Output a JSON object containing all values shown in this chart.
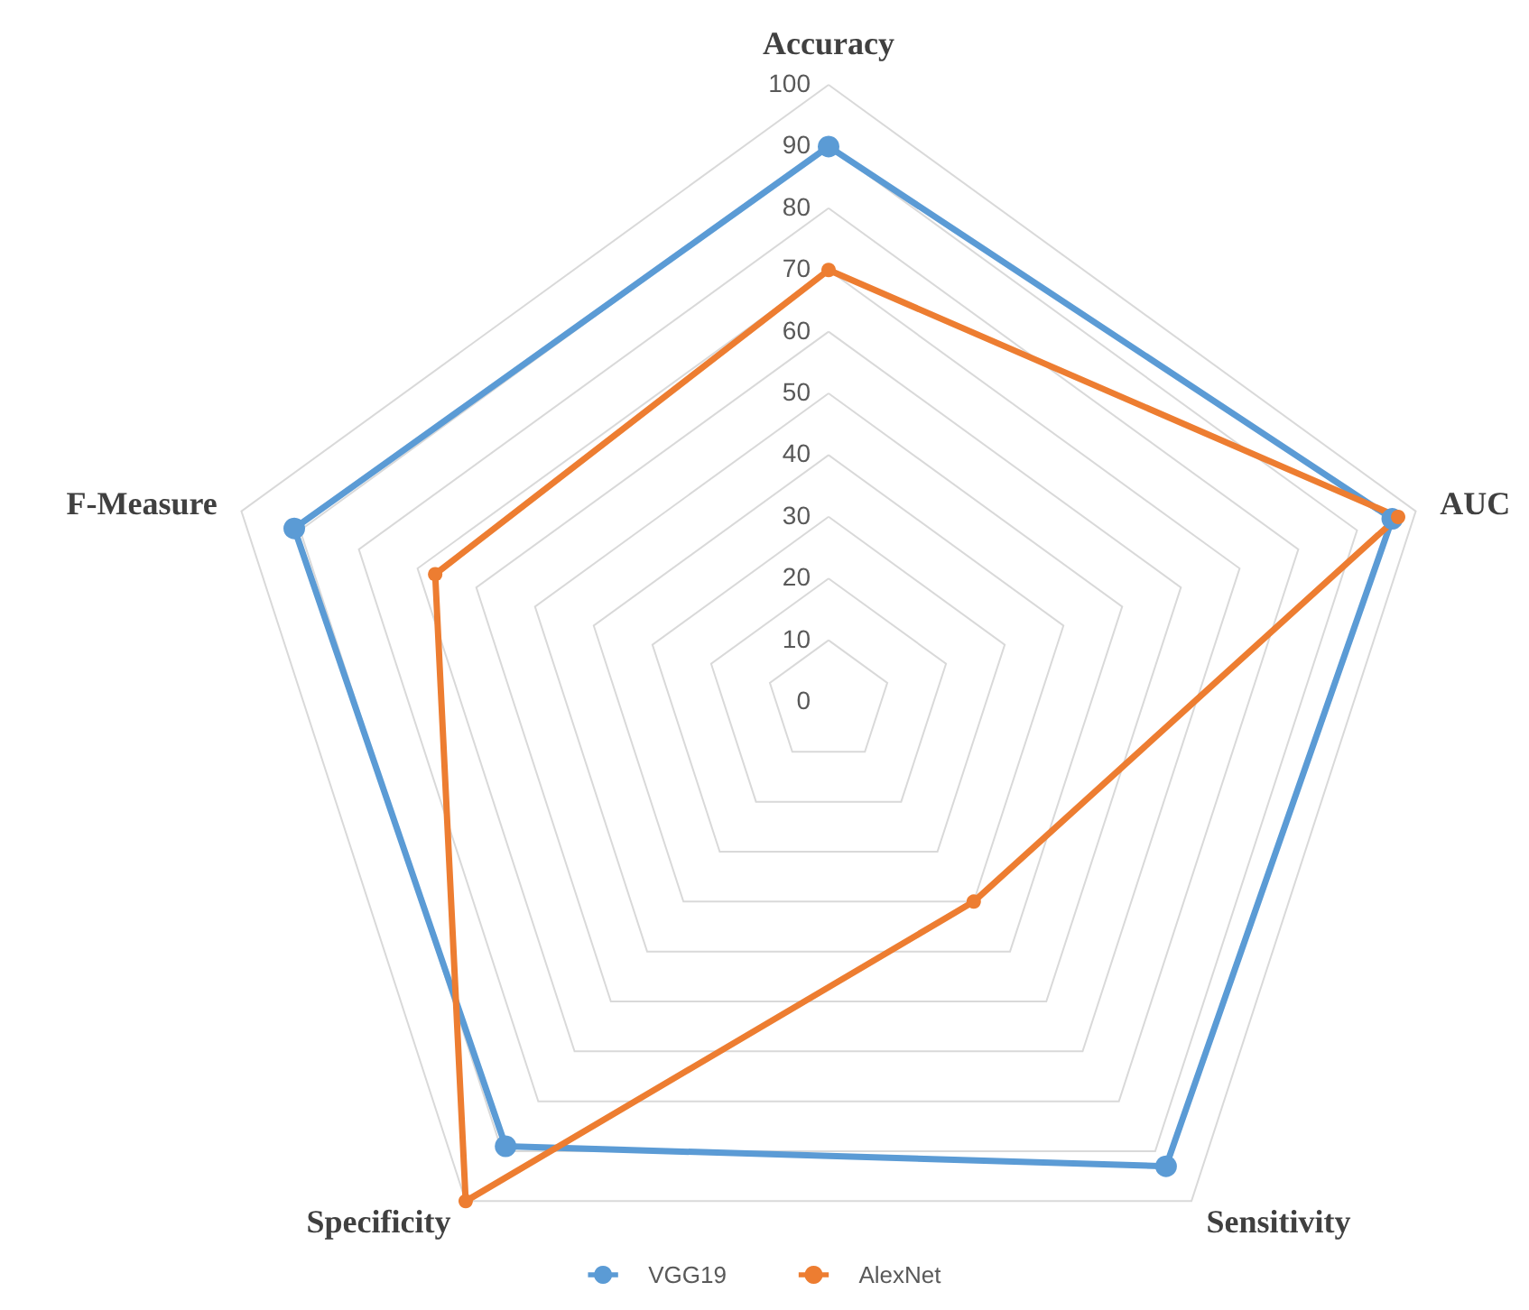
{
  "chart_data": {
    "type": "radar",
    "categories": [
      "Accuracy",
      "AUC",
      "Sensitivity",
      "Specificity",
      "F-Measure"
    ],
    "series": [
      {
        "name": "VGG19",
        "color": "#5b9bd5",
        "values": [
          90,
          96,
          93,
          89,
          91
        ]
      },
      {
        "name": "AlexNet",
        "color": "#ed7d31",
        "values": [
          70,
          97,
          40,
          100,
          67
        ]
      }
    ],
    "ylim": [
      0,
      100
    ],
    "yticks": [
      0,
      10,
      20,
      30,
      40,
      50,
      60,
      70,
      80,
      90,
      100
    ],
    "grid": true,
    "legend": "bottom",
    "marker": "circle"
  }
}
